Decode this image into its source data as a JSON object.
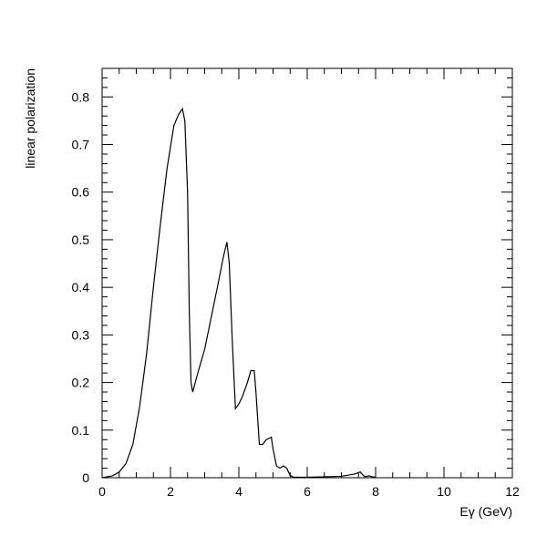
{
  "chart_data": {
    "type": "line",
    "title": "",
    "xlabel": "Eγ (GeV)",
    "ylabel": "linear polarization",
    "xlim": [
      0,
      12
    ],
    "ylim": [
      0,
      0.86
    ],
    "xticks": [
      0,
      2,
      4,
      6,
      8,
      10,
      12
    ],
    "xtick_labels": [
      "0",
      "2",
      "4",
      "6",
      "8",
      "10",
      "12"
    ],
    "yticks": [
      0,
      0.1,
      0.2,
      0.3,
      0.4,
      0.5,
      0.6,
      0.7,
      0.8
    ],
    "ytick_labels": [
      "0",
      "0.1",
      "0.2",
      "0.3",
      "0.4",
      "0.5",
      "0.6",
      "0.7",
      "0.8"
    ],
    "grid": false,
    "legend": "none",
    "line_color": "#000000",
    "series": [
      {
        "x": [
          0,
          0.3,
          0.5,
          0.7,
          0.9,
          1.1,
          1.3,
          1.5,
          1.7,
          1.9,
          2.1,
          2.25,
          2.35,
          2.42,
          2.5,
          2.55,
          2.6,
          2.65,
          2.8,
          3.0,
          3.2,
          3.4,
          3.55,
          3.65,
          3.72,
          3.8,
          3.9,
          4.0,
          4.1,
          4.25,
          4.35,
          4.45,
          4.5,
          4.6,
          4.7,
          4.8,
          4.95,
          5.0,
          5.1,
          5.2,
          5.3,
          5.4,
          5.5,
          5.6,
          6.0,
          7.0,
          7.4,
          7.55,
          7.65,
          7.7,
          7.8,
          7.9,
          8.0
        ],
        "y": [
          0,
          0.004,
          0.012,
          0.03,
          0.07,
          0.15,
          0.26,
          0.4,
          0.53,
          0.65,
          0.74,
          0.765,
          0.775,
          0.75,
          0.6,
          0.35,
          0.2,
          0.18,
          0.22,
          0.27,
          0.34,
          0.41,
          0.465,
          0.495,
          0.45,
          0.3,
          0.145,
          0.155,
          0.17,
          0.2,
          0.225,
          0.225,
          0.18,
          0.07,
          0.07,
          0.08,
          0.085,
          0.06,
          0.025,
          0.02,
          0.025,
          0.02,
          0.005,
          0.001,
          0.001,
          0.003,
          0.008,
          0.012,
          0.004,
          0.002,
          0.004,
          0.002,
          0.001
        ]
      }
    ]
  }
}
